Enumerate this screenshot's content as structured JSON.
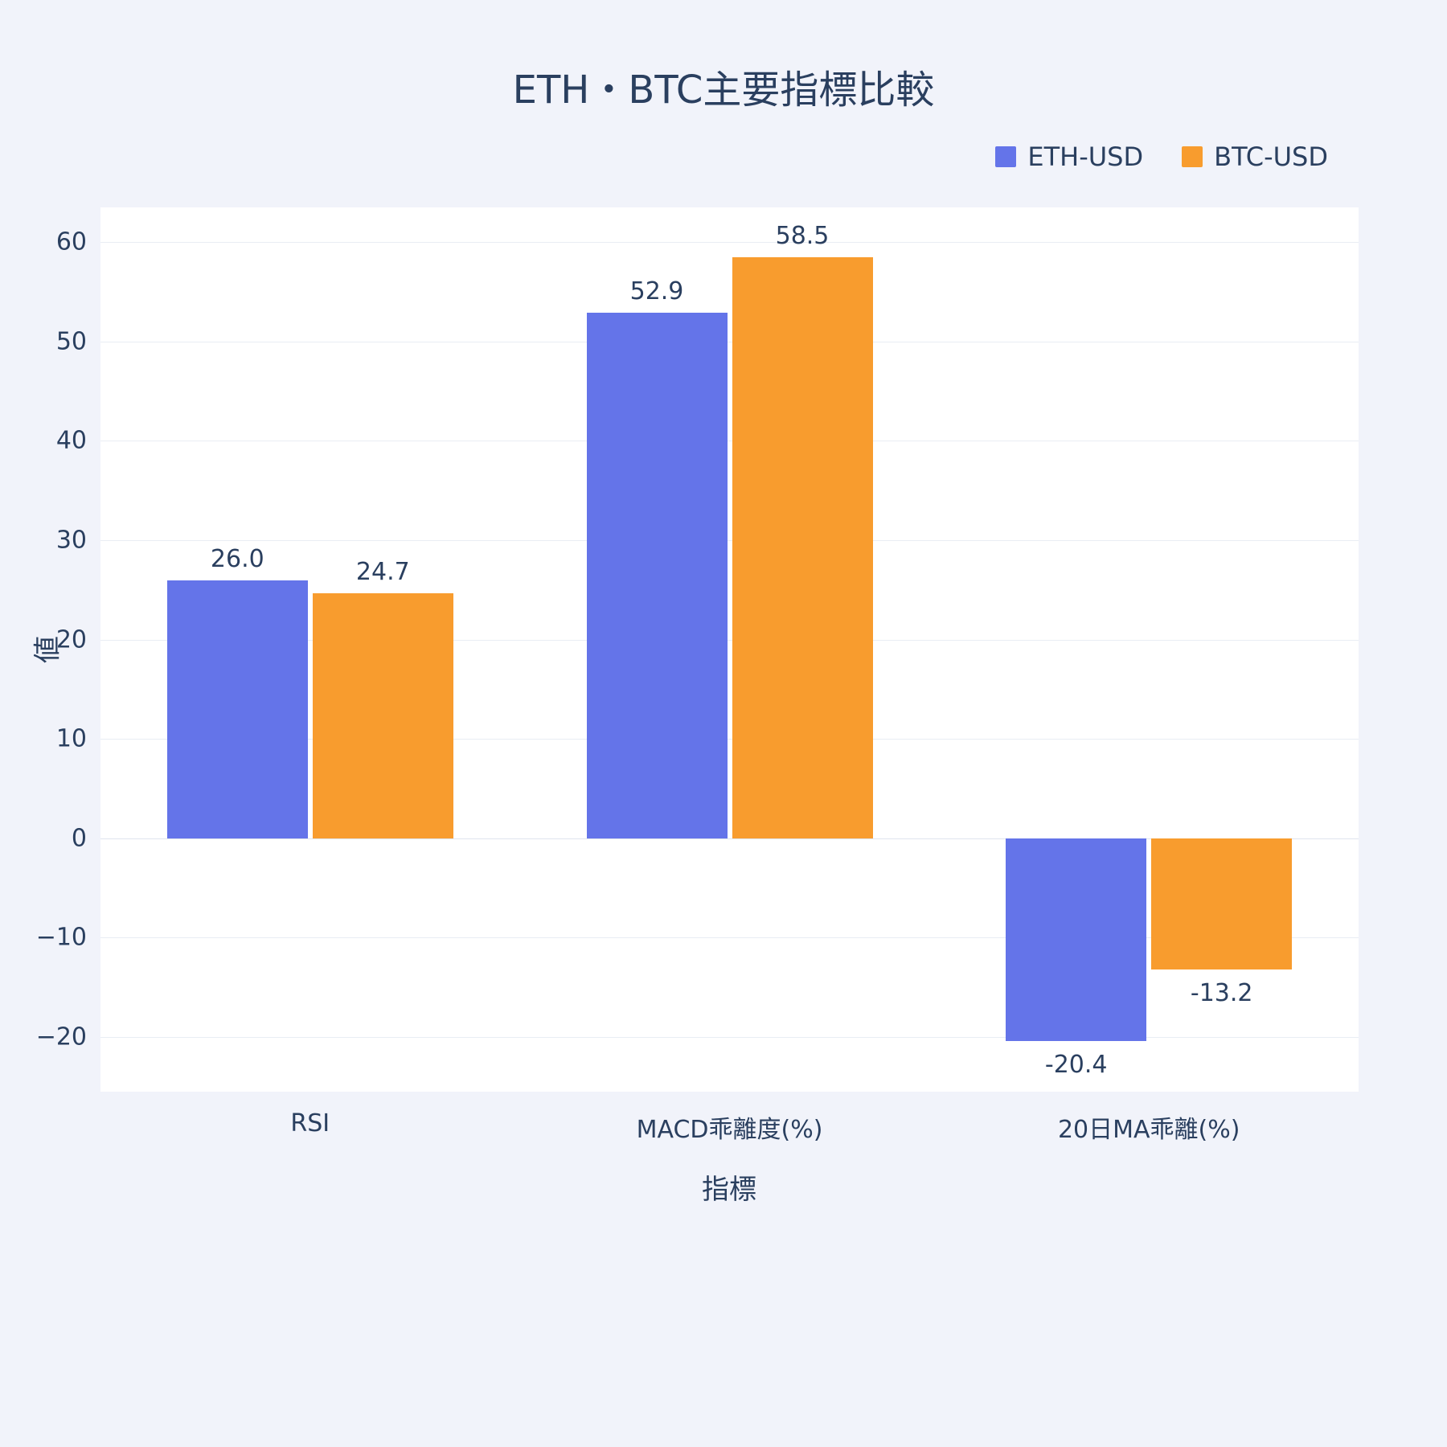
{
  "chart_data": {
    "type": "bar",
    "title": "ETH・BTC主要指標比較",
    "xlabel": "指標",
    "ylabel": "値",
    "categories": [
      "RSI",
      "MACD乖離度(%)",
      "20日MA乖離(%)"
    ],
    "series": [
      {
        "name": "ETH-USD",
        "color": "#6474e9",
        "values": [
          26.0,
          52.9,
          -20.4
        ]
      },
      {
        "name": "BTC-USD",
        "color": "#f89c2e",
        "values": [
          24.7,
          58.5,
          -13.2
        ]
      }
    ],
    "value_labels": [
      [
        "26.0",
        "52.9",
        "-20.4"
      ],
      [
        "24.7",
        "58.5",
        "-13.2"
      ]
    ],
    "ylim": [
      -25.5,
      63.5
    ],
    "yticks": [
      -20,
      -10,
      0,
      10,
      20,
      30,
      40,
      50,
      60
    ],
    "grid": true,
    "legend_position": "top-right",
    "plot_bg": "#ffffff",
    "paper_bg": "#f1f3fa",
    "text_color": "#2a3f5f"
  }
}
